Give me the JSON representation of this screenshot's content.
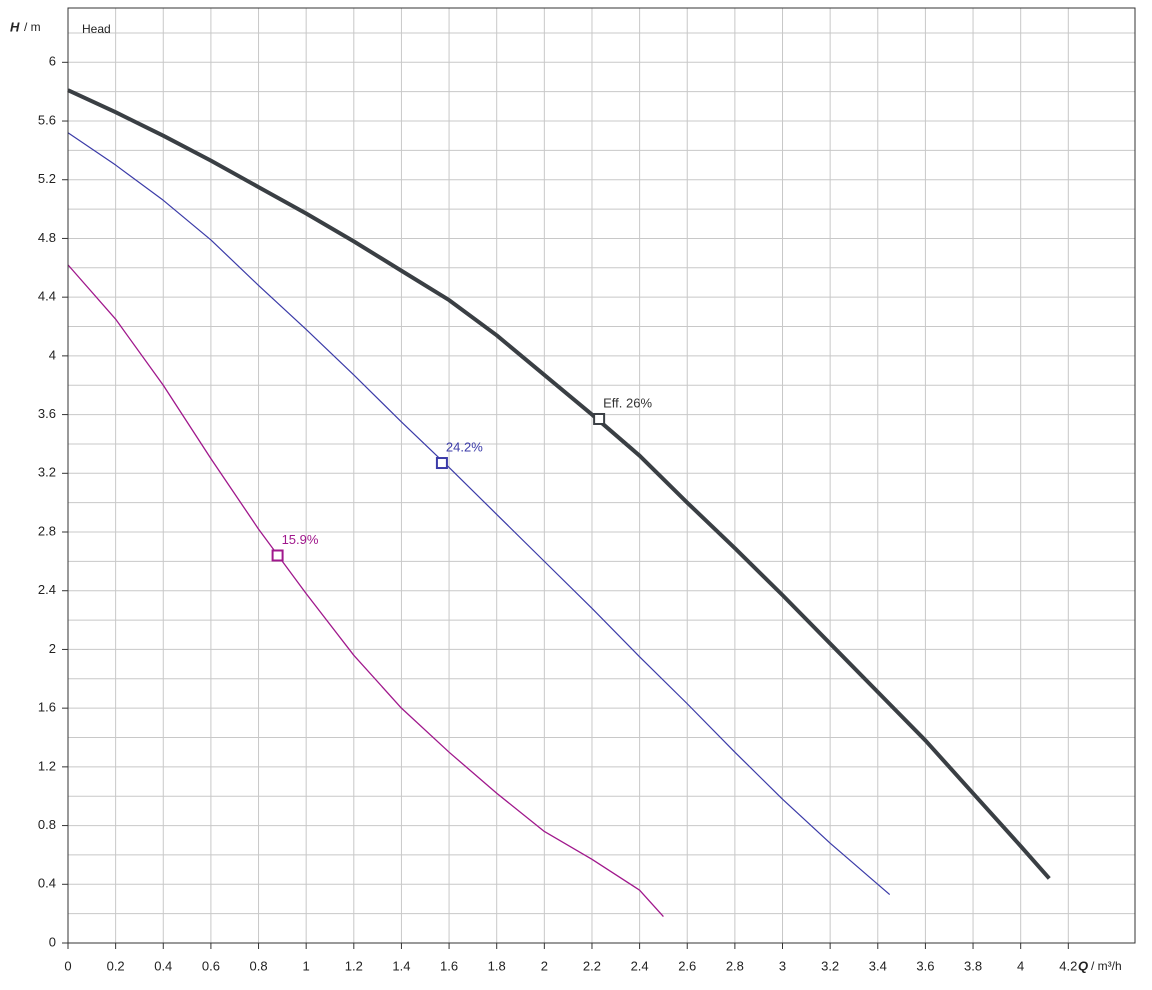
{
  "chart_data": {
    "type": "line",
    "title": "Head",
    "y_label": {
      "symbol": "H",
      "unit": "/ m"
    },
    "x_label": {
      "symbol": "Q",
      "unit": "/ m³/h"
    },
    "xlim": [
      0,
      4.48
    ],
    "ylim": [
      0,
      6.37
    ],
    "xticks": [
      0,
      0.2,
      0.4,
      0.6,
      0.8,
      1,
      1.2,
      1.4,
      1.6,
      1.8,
      2,
      2.2,
      2.4,
      2.6,
      2.8,
      3,
      3.2,
      3.4,
      3.6,
      3.8,
      4,
      4.2
    ],
    "yticks": [
      0,
      0.4,
      0.8,
      1.2,
      1.6,
      2,
      2.4,
      2.8,
      3.2,
      3.6,
      4,
      4.4,
      4.8,
      5.2,
      5.6,
      6
    ],
    "y_minor_grid": [
      0.2,
      0.6,
      1.0,
      1.4,
      1.8,
      2.2,
      2.6,
      3.0,
      3.4,
      3.8,
      4.2,
      4.6,
      5.0,
      5.4,
      5.8,
      6.2
    ],
    "grid": true,
    "series": [
      {
        "color": "#3a3f44",
        "width": 4,
        "x": [
          0,
          0.2,
          0.4,
          0.6,
          0.8,
          1.0,
          1.2,
          1.4,
          1.6,
          1.8,
          2.0,
          2.2,
          2.4,
          2.6,
          2.8,
          3.0,
          3.2,
          3.4,
          3.6,
          3.8,
          4.0,
          4.12
        ],
        "values": [
          5.81,
          5.66,
          5.5,
          5.33,
          5.15,
          4.97,
          4.78,
          4.58,
          4.38,
          4.14,
          3.87,
          3.6,
          3.32,
          3.0,
          2.69,
          2.37,
          2.04,
          1.71,
          1.38,
          1.02,
          0.66,
          0.44
        ],
        "point": {
          "x": 2.23,
          "y": 3.57,
          "label": "Eff. 26%"
        }
      },
      {
        "color": "#3b3ba8",
        "width": 1.2,
        "x": [
          0,
          0.2,
          0.4,
          0.6,
          0.8,
          1.0,
          1.2,
          1.4,
          1.6,
          1.8,
          2.0,
          2.2,
          2.4,
          2.6,
          2.8,
          3.0,
          3.2,
          3.4,
          3.45
        ],
        "values": [
          5.52,
          5.3,
          5.06,
          4.79,
          4.48,
          4.18,
          3.87,
          3.55,
          3.24,
          2.92,
          2.6,
          2.28,
          1.95,
          1.63,
          1.3,
          0.98,
          0.68,
          0.4,
          0.33
        ],
        "point": {
          "x": 1.57,
          "y": 3.27,
          "label": "24.2%"
        }
      },
      {
        "color": "#a0188c",
        "width": 1.3,
        "x": [
          0,
          0.2,
          0.4,
          0.6,
          0.8,
          1.0,
          1.2,
          1.4,
          1.6,
          1.8,
          2.0,
          2.2,
          2.4,
          2.5
        ],
        "values": [
          4.62,
          4.25,
          3.8,
          3.3,
          2.82,
          2.38,
          1.96,
          1.6,
          1.3,
          1.02,
          0.76,
          0.57,
          0.36,
          0.18
        ],
        "point": {
          "x": 0.88,
          "y": 2.64,
          "label": "15.9%"
        }
      }
    ]
  }
}
